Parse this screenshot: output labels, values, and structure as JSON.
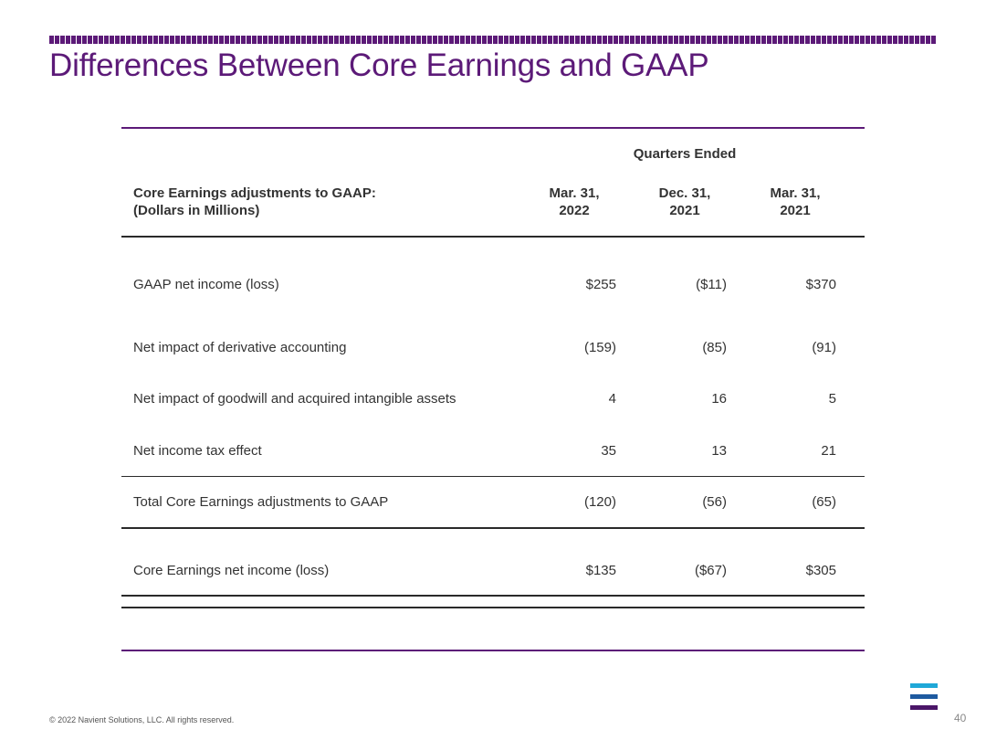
{
  "slide": {
    "title": "Differences Between Core Earnings and GAAP",
    "footer": "© 2022 Navient Solutions, LLC. All rights reserved.",
    "page_number": "40",
    "colors": {
      "title": "#5c1a78",
      "bar_palette": [
        "#5c1a78",
        "#3e6a8e",
        "#7a2a96",
        "#2e8a9a",
        "#4b1668"
      ],
      "logo": [
        "#1fa8d8",
        "#1e5aa0",
        "#4b1668"
      ]
    }
  },
  "table": {
    "group_header": "Quarters Ended",
    "label_header_line1": "Core Earnings adjustments to GAAP:",
    "label_header_line2": "(Dollars in Millions)",
    "columns": [
      {
        "line1": "Mar. 31,",
        "line2": "2022"
      },
      {
        "line1": "Dec. 31,",
        "line2": "2021"
      },
      {
        "line1": "Mar. 31,",
        "line2": "2021"
      }
    ],
    "rows": [
      {
        "label": "GAAP net income (loss)",
        "values": [
          "$255",
          "($11)",
          "$370"
        ]
      },
      {
        "label": "Net impact of derivative accounting",
        "values": [
          "(159)",
          "(85)",
          "(91)"
        ]
      },
      {
        "label": "Net impact of goodwill and acquired intangible assets",
        "values": [
          "4",
          "16",
          "5"
        ]
      },
      {
        "label": "Net income tax effect",
        "values": [
          "35",
          "13",
          "21"
        ]
      },
      {
        "label": "Total Core Earnings adjustments to GAAP",
        "values": [
          "(120)",
          "(56)",
          "(65)"
        ]
      },
      {
        "label": "Core Earnings net income (loss)",
        "values": [
          "$135",
          "($67)",
          "$305"
        ]
      }
    ]
  }
}
